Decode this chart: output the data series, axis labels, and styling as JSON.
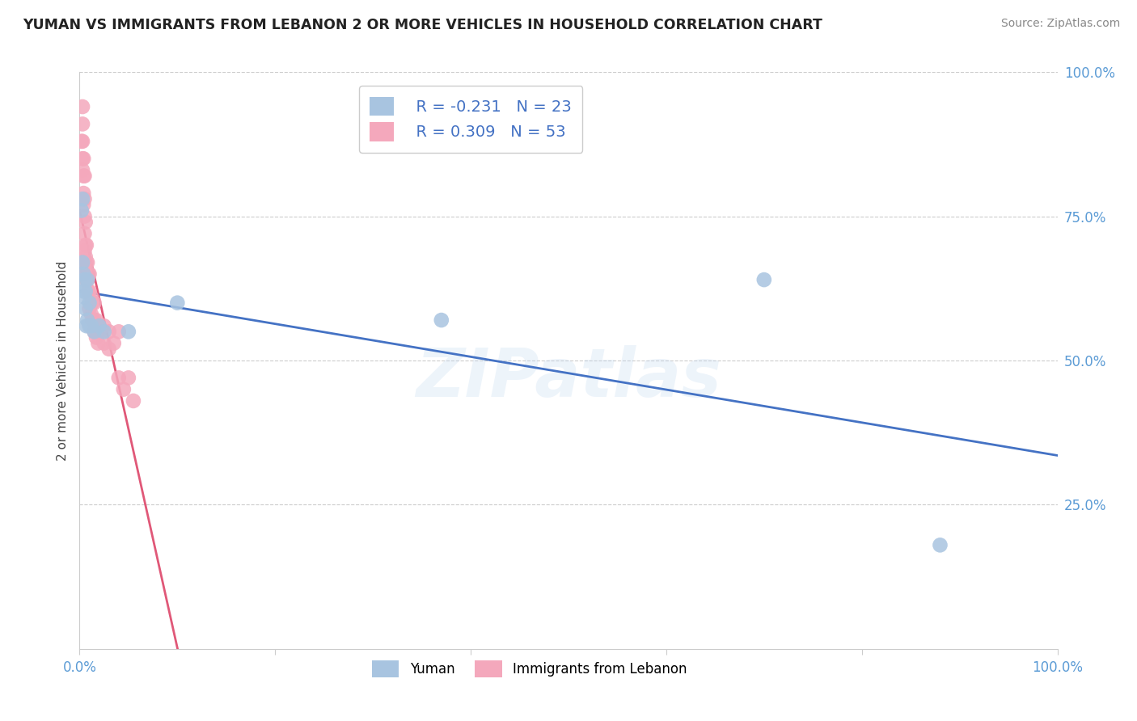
{
  "title": "YUMAN VS IMMIGRANTS FROM LEBANON 2 OR MORE VEHICLES IN HOUSEHOLD CORRELATION CHART",
  "source": "Source: ZipAtlas.com",
  "ylabel": "2 or more Vehicles in Household",
  "color_yuman": "#a8c4e0",
  "color_lebanon": "#f4a8bc",
  "line_color_yuman": "#4472c4",
  "line_color_lebanon": "#e05878",
  "legend_r_yuman": "R = -0.231",
  "legend_n_yuman": "N = 23",
  "legend_r_lebanon": "R = 0.309",
  "legend_n_lebanon": "N = 53",
  "watermark": "ZIPatlas",
  "xmin": 0.0,
  "xmax": 1.0,
  "ymin": 0.0,
  "ymax": 1.0,
  "yuman_x": [
    0.002,
    0.003,
    0.003,
    0.004,
    0.004,
    0.005,
    0.005,
    0.006,
    0.006,
    0.007,
    0.008,
    0.008,
    0.01,
    0.01,
    0.012,
    0.015,
    0.02,
    0.025,
    0.05,
    0.1,
    0.37,
    0.7,
    0.88
  ],
  "yuman_y": [
    0.76,
    0.78,
    0.67,
    0.65,
    0.62,
    0.64,
    0.61,
    0.62,
    0.59,
    0.56,
    0.64,
    0.57,
    0.6,
    0.56,
    0.56,
    0.55,
    0.56,
    0.55,
    0.55,
    0.6,
    0.57,
    0.64,
    0.18
  ],
  "lebanon_x": [
    0.002,
    0.003,
    0.003,
    0.003,
    0.003,
    0.003,
    0.004,
    0.004,
    0.004,
    0.004,
    0.005,
    0.005,
    0.005,
    0.005,
    0.005,
    0.005,
    0.005,
    0.006,
    0.006,
    0.006,
    0.006,
    0.007,
    0.007,
    0.007,
    0.008,
    0.008,
    0.009,
    0.009,
    0.01,
    0.01,
    0.01,
    0.012,
    0.012,
    0.013,
    0.013,
    0.015,
    0.015,
    0.015,
    0.017,
    0.017,
    0.019,
    0.019,
    0.02,
    0.025,
    0.025,
    0.03,
    0.03,
    0.035,
    0.04,
    0.04,
    0.045,
    0.05,
    0.055
  ],
  "lebanon_y": [
    0.88,
    0.94,
    0.91,
    0.88,
    0.85,
    0.83,
    0.85,
    0.82,
    0.79,
    0.77,
    0.82,
    0.78,
    0.75,
    0.72,
    0.69,
    0.67,
    0.65,
    0.74,
    0.7,
    0.68,
    0.65,
    0.7,
    0.67,
    0.64,
    0.67,
    0.64,
    0.65,
    0.62,
    0.65,
    0.62,
    0.59,
    0.61,
    0.58,
    0.6,
    0.57,
    0.6,
    0.57,
    0.55,
    0.57,
    0.54,
    0.56,
    0.53,
    0.55,
    0.56,
    0.53,
    0.55,
    0.52,
    0.53,
    0.55,
    0.47,
    0.45,
    0.47,
    0.43
  ]
}
